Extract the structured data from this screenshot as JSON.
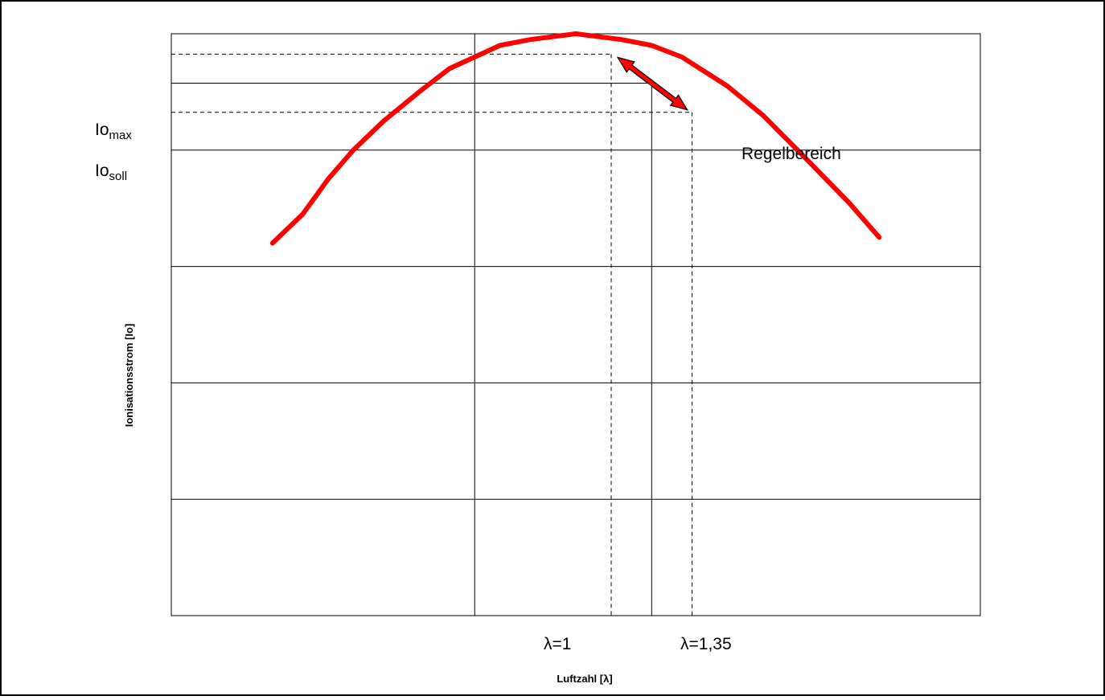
{
  "chart_data": {
    "type": "line",
    "title": "",
    "xlabel": "Luftzahl [λ]",
    "ylabel": "Ionisationsstrom [Io]",
    "x_range": [
      0.4,
      2.0
    ],
    "y_range": [
      0,
      1.0
    ],
    "grid": {
      "horizontal": true,
      "vertical": false
    },
    "series": [
      {
        "color": "#ff0000",
        "points": [
          [
            0.6,
            0.64
          ],
          [
            0.66,
            0.69
          ],
          [
            0.71,
            0.75
          ],
          [
            0.76,
            0.8
          ],
          [
            0.82,
            0.85
          ],
          [
            0.89,
            0.9
          ],
          [
            0.95,
            0.94
          ],
          [
            1.05,
            0.98
          ],
          [
            1.11,
            0.99
          ],
          [
            1.2,
            1.0
          ],
          [
            1.29,
            0.99
          ],
          [
            1.35,
            0.98
          ],
          [
            1.41,
            0.96
          ],
          [
            1.5,
            0.91
          ],
          [
            1.57,
            0.86
          ],
          [
            1.65,
            0.79
          ],
          [
            1.74,
            0.71
          ],
          [
            1.8,
            0.65
          ]
        ]
      }
    ],
    "reference_lines": {
      "io_max": {
        "label_main": "Io",
        "label_sub": "max",
        "y": 1.0
      },
      "io_soll": {
        "label_main": "Io",
        "label_sub": "soll",
        "y": 0.915
      },
      "lambda_1": {
        "label": "λ=1",
        "x": 1.0
      },
      "lambda_135": {
        "label": "λ=1,35",
        "x": 1.35
      }
    },
    "regelbereich": {
      "label": "Regelbereich",
      "x_range": [
        1.27,
        1.43
      ],
      "y_range": [
        0.865,
        0.965
      ]
    }
  }
}
